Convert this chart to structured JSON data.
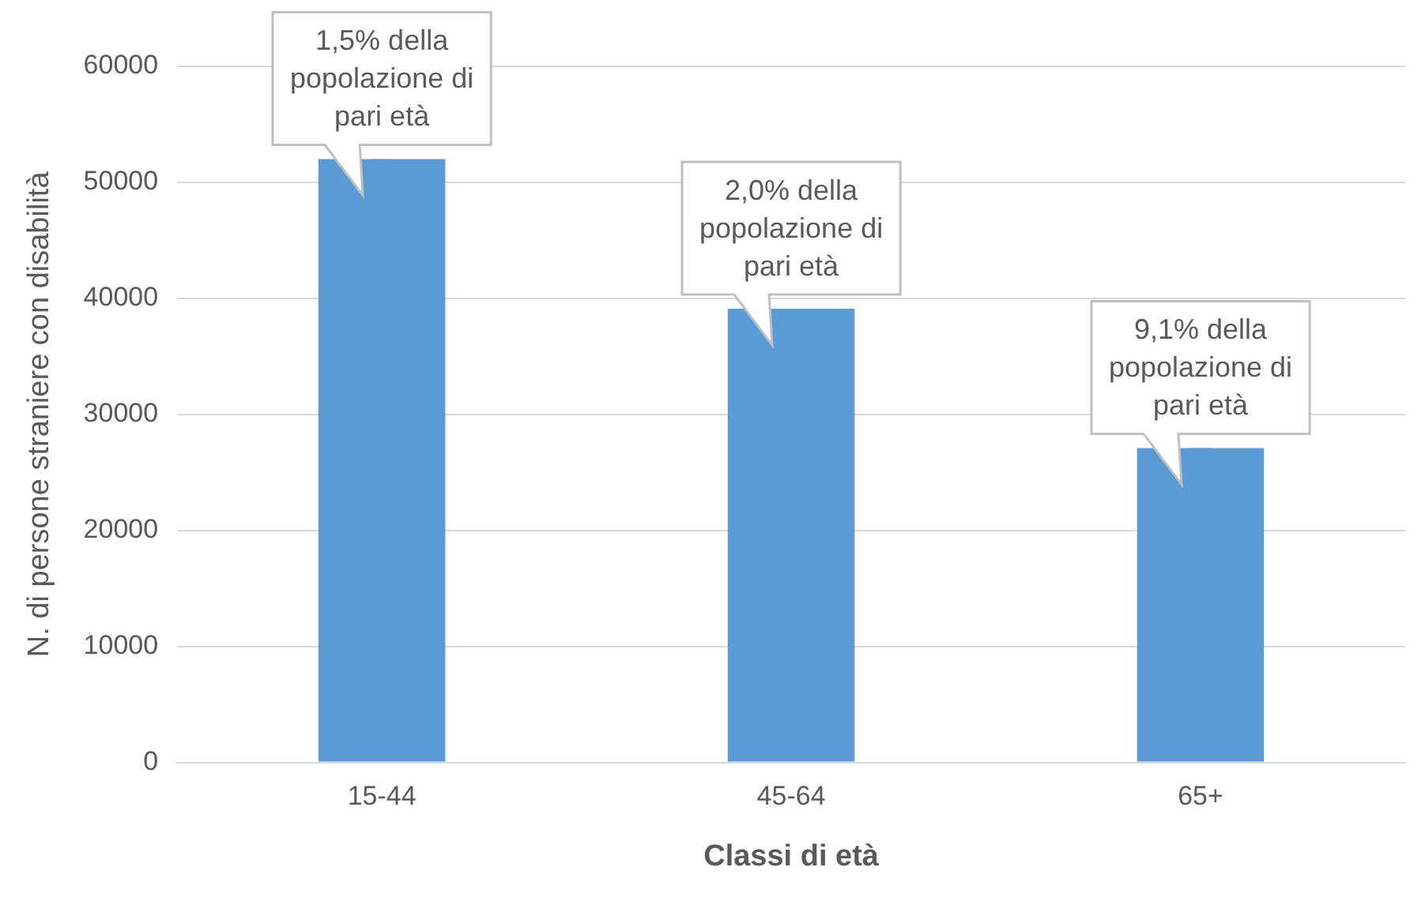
{
  "chart_data": {
    "type": "bar",
    "categories": [
      "15-44",
      "45-64",
      "65+"
    ],
    "values": [
      52000,
      39100,
      27100
    ],
    "color": "#5b9bd5",
    "xlabel": "Classi di età",
    "ylabel": "N. di persone straniere con disabilità",
    "ylim": [
      0,
      60000
    ],
    "yticks": [
      0,
      10000,
      20000,
      30000,
      40000,
      50000,
      60000
    ],
    "grid": "y",
    "annotations": [
      {
        "text": "1,5% della popolazione di pari età",
        "x": "15-44",
        "y": 52000
      },
      {
        "text": "2,0% della popolazione di pari età",
        "x": "45-64",
        "y": 39100
      },
      {
        "text": "9,1% della popolazione di pari età",
        "x": "65+",
        "y": 27100
      }
    ]
  }
}
